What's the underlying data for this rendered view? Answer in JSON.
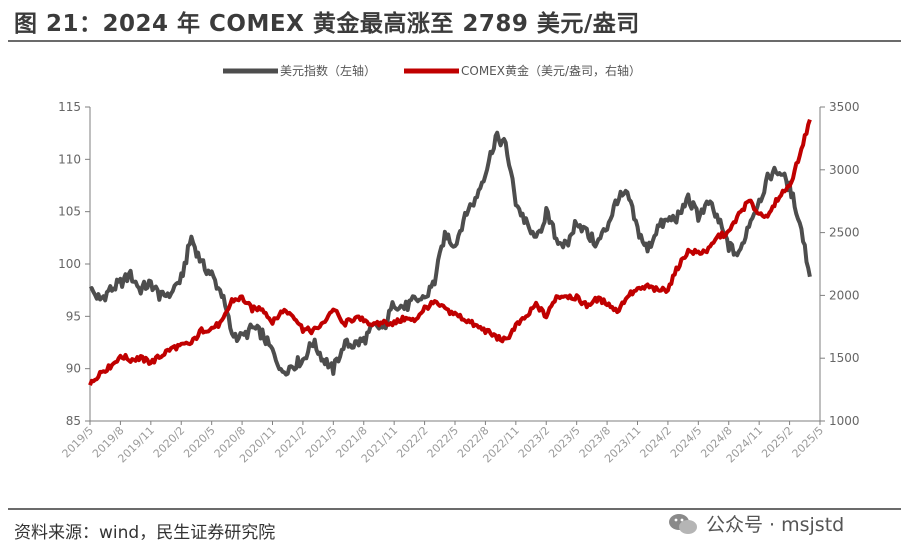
{
  "header": {
    "title": "图 21：2024 年 COMEX 黄金最高涨至 2789 美元/盎司"
  },
  "footer": {
    "source": "资料来源：wind，民生证券研究院",
    "watermark": "公众号 · msjstd"
  },
  "colors": {
    "usd_index": "#4d4d4d",
    "gold": "#c00000",
    "axis": "#7f7f7f"
  },
  "chart_data": {
    "type": "line",
    "legend_position": "top-center",
    "grid": false,
    "left_axis": {
      "ylim": [
        85,
        115
      ],
      "ticks": [
        "85",
        "90",
        "95",
        "100",
        "105",
        "110",
        "115"
      ]
    },
    "right_axis": {
      "ylim": [
        1000,
        3500
      ],
      "ticks": [
        "1000",
        "1500",
        "2000",
        "2500",
        "3000",
        "3500"
      ]
    },
    "x_ticks": [
      "2019/5",
      "2019/8",
      "2019/11",
      "2020/2",
      "2020/5",
      "2020/8",
      "2020/11",
      "2021/2",
      "2021/5",
      "2021/8",
      "2021/11",
      "2022/2",
      "2022/5",
      "2022/8",
      "2022/11",
      "2023/2",
      "2023/5",
      "2023/8",
      "2023/11",
      "2024/2",
      "2024/5",
      "2024/8",
      "2024/11",
      "2025/2",
      "2025/5"
    ],
    "series": [
      {
        "name": "美元指数（左轴）",
        "axis": "left",
        "x": [
          "2019/5",
          "2019/6",
          "2019/7",
          "2019/8",
          "2019/9",
          "2019/10",
          "2019/11",
          "2019/12",
          "2020/1",
          "2020/2",
          "2020/3",
          "2020/4",
          "2020/5",
          "2020/6",
          "2020/7",
          "2020/8",
          "2020/9",
          "2020/10",
          "2020/11",
          "2020/12",
          "2021/1",
          "2021/2",
          "2021/3",
          "2021/4",
          "2021/5",
          "2021/6",
          "2021/7",
          "2021/8",
          "2021/9",
          "2021/10",
          "2021/11",
          "2021/12",
          "2022/1",
          "2022/2",
          "2022/3",
          "2022/4",
          "2022/5",
          "2022/6",
          "2022/7",
          "2022/8",
          "2022/9",
          "2022/10",
          "2022/11",
          "2022/12",
          "2023/1",
          "2023/2",
          "2023/3",
          "2023/4",
          "2023/5",
          "2023/6",
          "2023/7",
          "2023/8",
          "2023/9",
          "2023/10",
          "2023/11",
          "2023/12",
          "2024/1",
          "2024/2",
          "2024/3",
          "2024/4",
          "2024/5",
          "2024/6",
          "2024/7",
          "2024/8",
          "2024/9",
          "2024/10",
          "2024/11",
          "2024/12",
          "2025/1",
          "2025/2",
          "2025/3",
          "2025/4"
        ],
        "values": [
          97.6,
          96.6,
          97.5,
          98.2,
          98.9,
          97.6,
          98.2,
          96.8,
          97.4,
          98.6,
          102.5,
          100.0,
          99.0,
          97.1,
          93.4,
          92.9,
          93.9,
          93.3,
          91.6,
          89.8,
          90.3,
          90.9,
          92.5,
          91.0,
          89.9,
          92.3,
          92.3,
          92.7,
          94.0,
          93.9,
          96.3,
          95.8,
          96.5,
          96.7,
          98.3,
          103.0,
          101.7,
          104.8,
          106.2,
          108.7,
          112.1,
          111.5,
          105.9,
          103.9,
          102.1,
          104.9,
          102.5,
          101.6,
          104.2,
          102.9,
          101.9,
          103.6,
          106.2,
          106.7,
          103.3,
          101.3,
          103.5,
          104.2,
          104.5,
          106.2,
          104.6,
          105.9,
          104.1,
          101.7,
          100.8,
          103.9,
          106.0,
          108.5,
          109.0,
          107.3,
          104.2,
          98.8
        ]
      },
      {
        "name": "COMEX黄金（美元/盎司，右轴）",
        "axis": "right",
        "x": [
          "2019/5",
          "2019/6",
          "2019/7",
          "2019/8",
          "2019/9",
          "2019/10",
          "2019/11",
          "2019/12",
          "2020/1",
          "2020/2",
          "2020/3",
          "2020/4",
          "2020/5",
          "2020/6",
          "2020/7",
          "2020/8",
          "2020/9",
          "2020/10",
          "2020/11",
          "2020/12",
          "2021/1",
          "2021/2",
          "2021/3",
          "2021/4",
          "2021/5",
          "2021/6",
          "2021/7",
          "2021/8",
          "2021/9",
          "2021/10",
          "2021/11",
          "2021/12",
          "2022/1",
          "2022/2",
          "2022/3",
          "2022/4",
          "2022/5",
          "2022/6",
          "2022/7",
          "2022/8",
          "2022/9",
          "2022/10",
          "2022/11",
          "2022/12",
          "2023/1",
          "2023/2",
          "2023/3",
          "2023/4",
          "2023/5",
          "2023/6",
          "2023/7",
          "2023/8",
          "2023/9",
          "2023/10",
          "2023/11",
          "2023/12",
          "2024/1",
          "2024/2",
          "2024/3",
          "2024/4",
          "2024/5",
          "2024/6",
          "2024/7",
          "2024/8",
          "2024/9",
          "2024/10",
          "2024/11",
          "2024/12",
          "2025/1",
          "2025/2",
          "2025/3",
          "2025/4"
        ],
        "values": [
          1285,
          1390,
          1430,
          1520,
          1490,
          1500,
          1465,
          1520,
          1580,
          1600,
          1620,
          1720,
          1740,
          1780,
          1960,
          1980,
          1890,
          1900,
          1780,
          1880,
          1850,
          1730,
          1715,
          1780,
          1900,
          1770,
          1815,
          1810,
          1760,
          1785,
          1780,
          1815,
          1800,
          1900,
          1940,
          1890,
          1850,
          1810,
          1760,
          1720,
          1670,
          1640,
          1760,
          1820,
          1930,
          1830,
          1990,
          2000,
          1980,
          1920,
          1970,
          1940,
          1870,
          2000,
          2040,
          2070,
          2040,
          2050,
          2230,
          2350,
          2340,
          2360,
          2470,
          2500,
          2650,
          2750,
          2650,
          2640,
          2800,
          2870,
          3120,
          3400
        ]
      }
    ]
  }
}
